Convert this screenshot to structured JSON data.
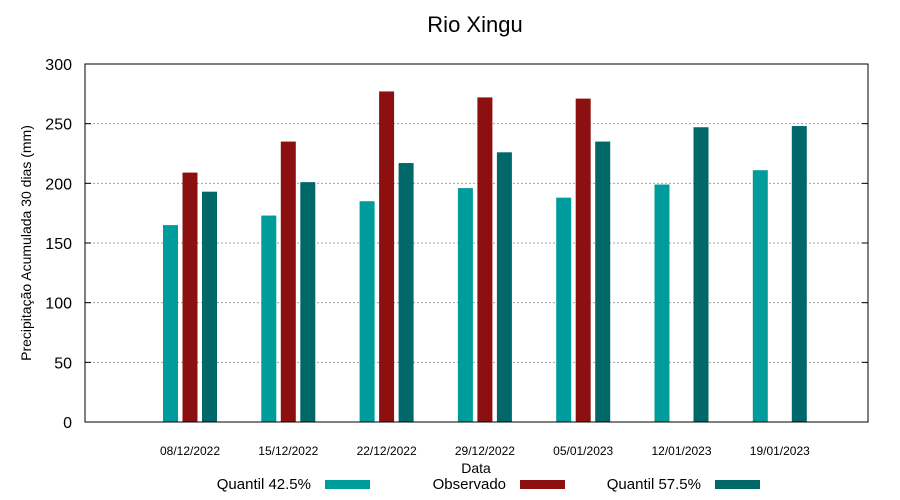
{
  "chart_data": {
    "type": "bar",
    "title": "Rio Xingu",
    "xlabel": "Data",
    "ylabel": "Precipitação Acumulada 30 dias (mm)",
    "ylim": [
      0,
      300
    ],
    "yticks": [
      0,
      50,
      100,
      150,
      200,
      250,
      300
    ],
    "grid": true,
    "legend_position": "bottom",
    "categories": [
      "08/12/2022",
      "15/12/2022",
      "22/12/2022",
      "29/12/2022",
      "05/01/2023",
      "12/01/2023",
      "19/01/2023"
    ],
    "series": [
      {
        "name": "Quantil 42.5%",
        "color": "#009c9c",
        "values": [
          165,
          173,
          185,
          196,
          188,
          199,
          211
        ]
      },
      {
        "name": "Observado",
        "color": "#8c1010",
        "values": [
          209,
          235,
          277,
          272,
          271,
          null,
          null
        ]
      },
      {
        "name": "Quantil 57.5%",
        "color": "#006868",
        "values": [
          193,
          201,
          217,
          226,
          235,
          247,
          248
        ]
      }
    ]
  }
}
